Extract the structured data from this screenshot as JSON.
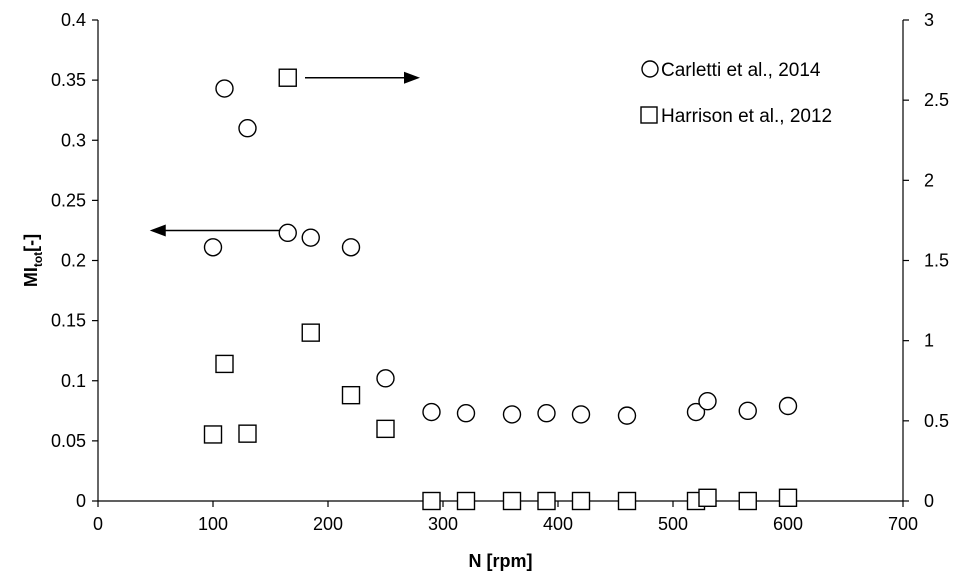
{
  "chart_data": {
    "type": "scatter",
    "x_axis": {
      "label": "N [rpm]",
      "range": [
        0,
        700
      ],
      "ticks": [
        0,
        100,
        200,
        300,
        400,
        500,
        600,
        700
      ],
      "tick_labels": [
        "0",
        "100",
        "200",
        "300",
        "400",
        "500",
        "600",
        "700"
      ]
    },
    "y_left": {
      "label_main": "MI",
      "label_sub": "tot",
      "label_tail": "[-]",
      "range": [
        0,
        0.4
      ],
      "ticks": [
        0,
        0.05,
        0.1,
        0.15,
        0.2,
        0.25,
        0.3,
        0.35,
        0.4
      ],
      "tick_labels": [
        "0",
        "0.05",
        "0.1",
        "0.15",
        "0.2",
        "0.25",
        "0.3",
        "0.35",
        "0.4"
      ]
    },
    "y_right": {
      "range": [
        0,
        3
      ],
      "ticks": [
        0,
        0.5,
        1,
        1.5,
        2,
        2.5,
        3
      ],
      "tick_labels": [
        "0",
        "0.5",
        "1",
        "1.5",
        "2",
        "2.5",
        "3"
      ]
    },
    "grid": false,
    "legend_position": "top-right",
    "series": [
      {
        "name": "Carletti et al., 2014",
        "marker": "circle",
        "axis": "left",
        "points": [
          [
            100,
            0.211
          ],
          [
            110,
            0.343
          ],
          [
            130,
            0.31
          ],
          [
            165,
            0.223
          ],
          [
            185,
            0.219
          ],
          [
            220,
            0.211
          ],
          [
            250,
            0.102
          ],
          [
            290,
            0.074
          ],
          [
            320,
            0.073
          ],
          [
            360,
            0.072
          ],
          [
            390,
            0.073
          ],
          [
            420,
            0.072
          ],
          [
            460,
            0.071
          ],
          [
            520,
            0.074
          ],
          [
            530,
            0.083
          ],
          [
            565,
            0.075
          ],
          [
            600,
            0.079
          ]
        ]
      },
      {
        "name": "Harrison et al., 2012",
        "marker": "square",
        "axis": "right",
        "points": [
          [
            100,
            0.415
          ],
          [
            110,
            0.855
          ],
          [
            130,
            0.42
          ],
          [
            165,
            2.64
          ],
          [
            185,
            1.05
          ],
          [
            220,
            0.66
          ],
          [
            250,
            0.45
          ],
          [
            290,
            0.0
          ],
          [
            320,
            0.0
          ],
          [
            360,
            0.0
          ],
          [
            390,
            0.0
          ],
          [
            420,
            0.0
          ],
          [
            460,
            0.0
          ],
          [
            520,
            0.0
          ],
          [
            530,
            0.02
          ],
          [
            565,
            0.0
          ],
          [
            600,
            0.02
          ]
        ]
      }
    ],
    "annotations": [
      {
        "direction": "left",
        "x_from": 165,
        "x_to": 45,
        "y_left": 0.225
      },
      {
        "direction": "right",
        "x_from": 180,
        "x_to": 280,
        "y_right": 2.64
      }
    ]
  }
}
